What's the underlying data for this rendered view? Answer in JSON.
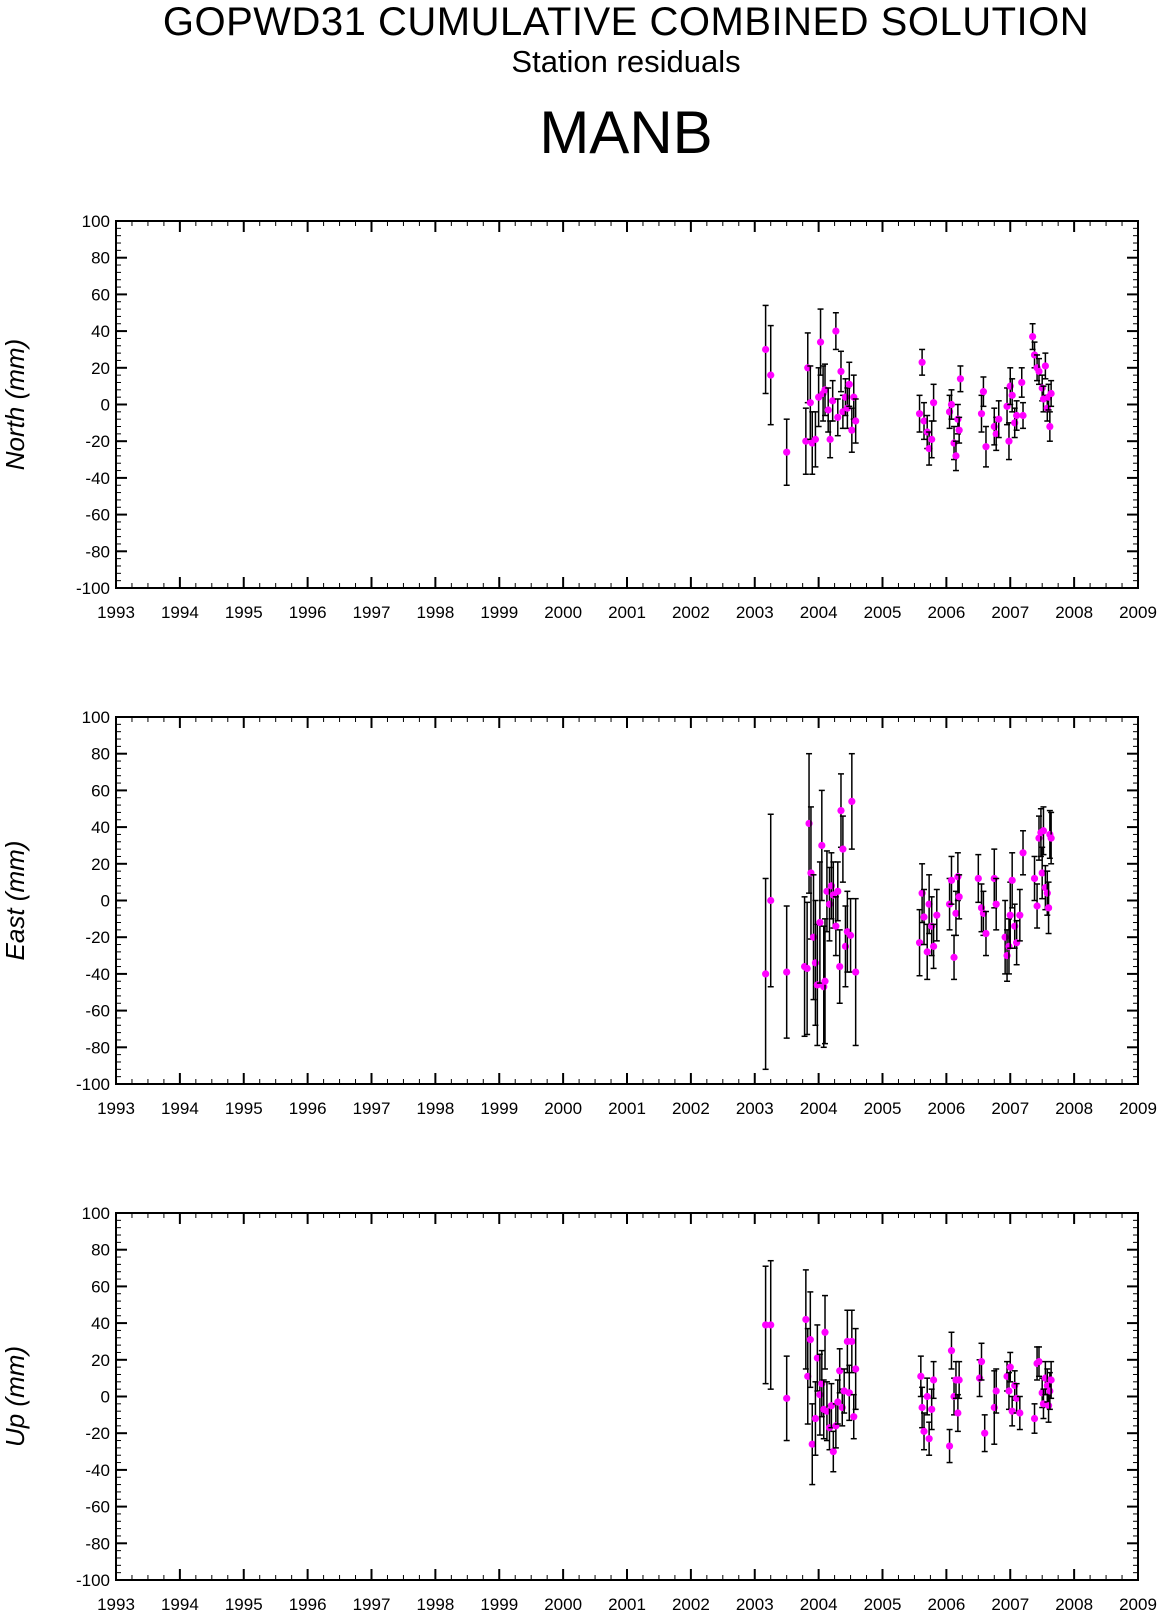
{
  "title": "GOPWD31 CUMULATIVE COMBINED SOLUTION",
  "subtitle": "Station residuals",
  "station": "MANB",
  "colors": {
    "point": "#ff00ff",
    "errorbar": "#000000",
    "axis": "#000000"
  },
  "chart_data": [
    {
      "type": "scatter",
      "ylabel": "North (mm)",
      "xlim": [
        1993,
        2009
      ],
      "ylim": [
        -100,
        100
      ],
      "xticks": [
        "1993",
        "1994",
        "1995",
        "1996",
        "1997",
        "1998",
        "1999",
        "2000",
        "2001",
        "2002",
        "2003",
        "2004",
        "2005",
        "2006",
        "2007",
        "2008",
        "2009"
      ],
      "yticks": [
        "100",
        "80",
        "60",
        "40",
        "20",
        "0",
        "-20",
        "-40",
        "-60",
        "-80",
        "-100"
      ],
      "points": [
        {
          "x": 2003.17,
          "y": 30,
          "err": 24
        },
        {
          "x": 2003.25,
          "y": 16,
          "err": 27
        },
        {
          "x": 2003.5,
          "y": -26,
          "err": 18
        },
        {
          "x": 2003.8,
          "y": -20,
          "err": 18
        },
        {
          "x": 2003.83,
          "y": 20,
          "err": 19
        },
        {
          "x": 2003.87,
          "y": 1,
          "err": 20
        },
        {
          "x": 2003.9,
          "y": -21,
          "err": 17
        },
        {
          "x": 2003.95,
          "y": -19,
          "err": 15
        },
        {
          "x": 2004.0,
          "y": 4,
          "err": 16
        },
        {
          "x": 2004.03,
          "y": 34,
          "err": 18
        },
        {
          "x": 2004.07,
          "y": 6,
          "err": 15
        },
        {
          "x": 2004.1,
          "y": 8,
          "err": 14
        },
        {
          "x": 2004.15,
          "y": -3,
          "err": 12
        },
        {
          "x": 2004.18,
          "y": -19,
          "err": 10
        },
        {
          "x": 2004.22,
          "y": 2,
          "err": 11
        },
        {
          "x": 2004.27,
          "y": 40,
          "err": 10
        },
        {
          "x": 2004.3,
          "y": -7,
          "err": 10
        },
        {
          "x": 2004.35,
          "y": 18,
          "err": 11
        },
        {
          "x": 2004.38,
          "y": -4,
          "err": 9
        },
        {
          "x": 2004.42,
          "y": 4,
          "err": 10
        },
        {
          "x": 2004.45,
          "y": -2,
          "err": 11
        },
        {
          "x": 2004.48,
          "y": 11,
          "err": 12
        },
        {
          "x": 2004.52,
          "y": -14,
          "err": 12
        },
        {
          "x": 2004.55,
          "y": 4,
          "err": 12
        },
        {
          "x": 2004.58,
          "y": -9,
          "err": 12
        },
        {
          "x": 2005.58,
          "y": -5,
          "err": 10
        },
        {
          "x": 2005.62,
          "y": 23,
          "err": 7
        },
        {
          "x": 2005.65,
          "y": -9,
          "err": 10
        },
        {
          "x": 2005.7,
          "y": -15,
          "err": 9
        },
        {
          "x": 2005.73,
          "y": -24,
          "err": 9
        },
        {
          "x": 2005.77,
          "y": -19,
          "err": 10
        },
        {
          "x": 2005.8,
          "y": 1,
          "err": 10
        },
        {
          "x": 2006.05,
          "y": -4,
          "err": 9
        },
        {
          "x": 2006.08,
          "y": 0,
          "err": 8
        },
        {
          "x": 2006.12,
          "y": -21,
          "err": 9
        },
        {
          "x": 2006.15,
          "y": -28,
          "err": 8
        },
        {
          "x": 2006.18,
          "y": -8,
          "err": 8
        },
        {
          "x": 2006.2,
          "y": -14,
          "err": 7
        },
        {
          "x": 2006.22,
          "y": 14,
          "err": 7
        },
        {
          "x": 2006.55,
          "y": -5,
          "err": 10
        },
        {
          "x": 2006.58,
          "y": 7,
          "err": 8
        },
        {
          "x": 2006.62,
          "y": -23,
          "err": 11
        },
        {
          "x": 2006.75,
          "y": -12,
          "err": 10
        },
        {
          "x": 2006.78,
          "y": -16,
          "err": 9
        },
        {
          "x": 2006.82,
          "y": -8,
          "err": 10
        },
        {
          "x": 2006.95,
          "y": -1,
          "err": 10
        },
        {
          "x": 2006.98,
          "y": -20,
          "err": 10
        },
        {
          "x": 2007.0,
          "y": 10,
          "err": 10
        },
        {
          "x": 2007.03,
          "y": 5,
          "err": 9
        },
        {
          "x": 2007.07,
          "y": -10,
          "err": 8
        },
        {
          "x": 2007.1,
          "y": -6,
          "err": 8
        },
        {
          "x": 2007.18,
          "y": 12,
          "err": 8
        },
        {
          "x": 2007.2,
          "y": -6,
          "err": 7
        },
        {
          "x": 2007.35,
          "y": 37,
          "err": 7
        },
        {
          "x": 2007.38,
          "y": 27,
          "err": 7
        },
        {
          "x": 2007.42,
          "y": 20,
          "err": 7
        },
        {
          "x": 2007.45,
          "y": 18,
          "err": 7
        },
        {
          "x": 2007.5,
          "y": 9,
          "err": 7
        },
        {
          "x": 2007.52,
          "y": 3,
          "err": 7
        },
        {
          "x": 2007.55,
          "y": 21,
          "err": 7
        },
        {
          "x": 2007.58,
          "y": -2,
          "err": 7
        },
        {
          "x": 2007.6,
          "y": 4,
          "err": 7
        },
        {
          "x": 2007.62,
          "y": -12,
          "err": 8
        },
        {
          "x": 2007.64,
          "y": 6,
          "err": 7
        }
      ]
    },
    {
      "type": "scatter",
      "ylabel": "East (mm)",
      "xlim": [
        1993,
        2009
      ],
      "ylim": [
        -100,
        100
      ],
      "xticks": [
        "1993",
        "1994",
        "1995",
        "1996",
        "1997",
        "1998",
        "1999",
        "2000",
        "2001",
        "2002",
        "2003",
        "2004",
        "2005",
        "2006",
        "2007",
        "2008",
        "2009"
      ],
      "yticks": [
        "100",
        "80",
        "60",
        "40",
        "20",
        "0",
        "-20",
        "-40",
        "-60",
        "-80",
        "-100"
      ],
      "points": [
        {
          "x": 2003.17,
          "y": -40,
          "err": 52
        },
        {
          "x": 2003.25,
          "y": 0,
          "err": 47
        },
        {
          "x": 2003.5,
          "y": -39,
          "err": 36
        },
        {
          "x": 2003.78,
          "y": -36,
          "err": 38
        },
        {
          "x": 2003.82,
          "y": -37,
          "err": 36
        },
        {
          "x": 2003.85,
          "y": 42,
          "err": 38
        },
        {
          "x": 2003.88,
          "y": 15,
          "err": 36
        },
        {
          "x": 2003.92,
          "y": -20,
          "err": 34
        },
        {
          "x": 2003.95,
          "y": -34,
          "err": 34
        },
        {
          "x": 2003.98,
          "y": -46,
          "err": 33
        },
        {
          "x": 2004.02,
          "y": -12,
          "err": 33
        },
        {
          "x": 2004.05,
          "y": 30,
          "err": 30
        },
        {
          "x": 2004.08,
          "y": -47,
          "err": 33
        },
        {
          "x": 2004.1,
          "y": -44,
          "err": 34
        },
        {
          "x": 2004.13,
          "y": 5,
          "err": 22
        },
        {
          "x": 2004.17,
          "y": -2,
          "err": 20
        },
        {
          "x": 2004.2,
          "y": 8,
          "err": 18
        },
        {
          "x": 2004.23,
          "y": 3,
          "err": 18
        },
        {
          "x": 2004.27,
          "y": -14,
          "err": 16
        },
        {
          "x": 2004.3,
          "y": 5,
          "err": 16
        },
        {
          "x": 2004.33,
          "y": -36,
          "err": 20
        },
        {
          "x": 2004.35,
          "y": 49,
          "err": 20
        },
        {
          "x": 2004.38,
          "y": 28,
          "err": 18
        },
        {
          "x": 2004.42,
          "y": -25,
          "err": 22
        },
        {
          "x": 2004.45,
          "y": -17,
          "err": 22
        },
        {
          "x": 2004.5,
          "y": -19,
          "err": 20
        },
        {
          "x": 2004.52,
          "y": 54,
          "err": 26
        },
        {
          "x": 2004.58,
          "y": -39,
          "err": 40
        },
        {
          "x": 2005.58,
          "y": -23,
          "err": 18
        },
        {
          "x": 2005.62,
          "y": 4,
          "err": 16
        },
        {
          "x": 2005.65,
          "y": -9,
          "err": 15
        },
        {
          "x": 2005.7,
          "y": -28,
          "err": 15
        },
        {
          "x": 2005.73,
          "y": -2,
          "err": 16
        },
        {
          "x": 2005.77,
          "y": -14,
          "err": 16
        },
        {
          "x": 2005.8,
          "y": -25,
          "err": 12
        },
        {
          "x": 2005.85,
          "y": -8,
          "err": 14
        },
        {
          "x": 2006.05,
          "y": -2,
          "err": 14
        },
        {
          "x": 2006.08,
          "y": 11,
          "err": 13
        },
        {
          "x": 2006.12,
          "y": -31,
          "err": 12
        },
        {
          "x": 2006.15,
          "y": -7,
          "err": 12
        },
        {
          "x": 2006.18,
          "y": 13,
          "err": 13
        },
        {
          "x": 2006.2,
          "y": 2,
          "err": 12
        },
        {
          "x": 2006.5,
          "y": 12,
          "err": 13
        },
        {
          "x": 2006.55,
          "y": -4,
          "err": 13
        },
        {
          "x": 2006.58,
          "y": -7,
          "err": 12
        },
        {
          "x": 2006.62,
          "y": -18,
          "err": 12
        },
        {
          "x": 2006.75,
          "y": 12,
          "err": 16
        },
        {
          "x": 2006.78,
          "y": -2,
          "err": 14
        },
        {
          "x": 2006.92,
          "y": -20,
          "err": 20
        },
        {
          "x": 2006.95,
          "y": -30,
          "err": 14
        },
        {
          "x": 2006.98,
          "y": -25,
          "err": 15
        },
        {
          "x": 2007.0,
          "y": -8,
          "err": 18
        },
        {
          "x": 2007.03,
          "y": 11,
          "err": 15
        },
        {
          "x": 2007.07,
          "y": -14,
          "err": 12
        },
        {
          "x": 2007.1,
          "y": -23,
          "err": 12
        },
        {
          "x": 2007.15,
          "y": -8,
          "err": 14
        },
        {
          "x": 2007.2,
          "y": 26,
          "err": 12
        },
        {
          "x": 2007.38,
          "y": 12,
          "err": 12
        },
        {
          "x": 2007.42,
          "y": -3,
          "err": 12
        },
        {
          "x": 2007.45,
          "y": 34,
          "err": 12
        },
        {
          "x": 2007.48,
          "y": 37,
          "err": 13
        },
        {
          "x": 2007.5,
          "y": 15,
          "err": 14
        },
        {
          "x": 2007.52,
          "y": 38,
          "err": 13
        },
        {
          "x": 2007.55,
          "y": 7,
          "err": 12
        },
        {
          "x": 2007.58,
          "y": 4,
          "err": 12
        },
        {
          "x": 2007.6,
          "y": -4,
          "err": 14
        },
        {
          "x": 2007.62,
          "y": 36,
          "err": 13
        },
        {
          "x": 2007.64,
          "y": 34,
          "err": 14
        }
      ]
    },
    {
      "type": "scatter",
      "ylabel": "Up (mm)",
      "xlim": [
        1993,
        2009
      ],
      "ylim": [
        -100,
        100
      ],
      "xticks": [
        "1993",
        "1994",
        "1995",
        "1996",
        "1997",
        "1998",
        "1999",
        "2000",
        "2001",
        "2002",
        "2003",
        "2004",
        "2005",
        "2006",
        "2007",
        "2008",
        "2009"
      ],
      "yticks": [
        "100",
        "80",
        "60",
        "40",
        "20",
        "0",
        "-20",
        "-40",
        "-60",
        "-80",
        "-100"
      ],
      "points": [
        {
          "x": 2003.17,
          "y": 39,
          "err": 32
        },
        {
          "x": 2003.25,
          "y": 39,
          "err": 35
        },
        {
          "x": 2003.5,
          "y": -1,
          "err": 23
        },
        {
          "x": 2003.8,
          "y": 42,
          "err": 27
        },
        {
          "x": 2003.83,
          "y": 11,
          "err": 26
        },
        {
          "x": 2003.87,
          "y": 31,
          "err": 26
        },
        {
          "x": 2003.9,
          "y": -26,
          "err": 22
        },
        {
          "x": 2003.95,
          "y": -12,
          "err": 20
        },
        {
          "x": 2003.98,
          "y": 21,
          "err": 18
        },
        {
          "x": 2004.02,
          "y": 1,
          "err": 22
        },
        {
          "x": 2004.05,
          "y": 7,
          "err": 18
        },
        {
          "x": 2004.08,
          "y": -7,
          "err": 16
        },
        {
          "x": 2004.1,
          "y": 35,
          "err": 20
        },
        {
          "x": 2004.13,
          "y": -8,
          "err": 16
        },
        {
          "x": 2004.17,
          "y": -17,
          "err": 12
        },
        {
          "x": 2004.2,
          "y": -5,
          "err": 12
        },
        {
          "x": 2004.23,
          "y": -30,
          "err": 11
        },
        {
          "x": 2004.27,
          "y": -16,
          "err": 12
        },
        {
          "x": 2004.3,
          "y": -3,
          "err": 12
        },
        {
          "x": 2004.33,
          "y": 14,
          "err": 12
        },
        {
          "x": 2004.37,
          "y": -6,
          "err": 10
        },
        {
          "x": 2004.4,
          "y": 3,
          "err": 12
        },
        {
          "x": 2004.45,
          "y": 30,
          "err": 17
        },
        {
          "x": 2004.48,
          "y": 2,
          "err": 15
        },
        {
          "x": 2004.52,
          "y": 30,
          "err": 17
        },
        {
          "x": 2004.55,
          "y": -11,
          "err": 12
        },
        {
          "x": 2004.58,
          "y": 15,
          "err": 22
        },
        {
          "x": 2005.6,
          "y": 11,
          "err": 11
        },
        {
          "x": 2005.62,
          "y": -6,
          "err": 11
        },
        {
          "x": 2005.65,
          "y": -19,
          "err": 10
        },
        {
          "x": 2005.7,
          "y": 0,
          "err": 10
        },
        {
          "x": 2005.73,
          "y": -23,
          "err": 9
        },
        {
          "x": 2005.77,
          "y": -7,
          "err": 11
        },
        {
          "x": 2005.8,
          "y": 9,
          "err": 10
        },
        {
          "x": 2006.05,
          "y": -27,
          "err": 9
        },
        {
          "x": 2006.08,
          "y": 25,
          "err": 10
        },
        {
          "x": 2006.12,
          "y": 0,
          "err": 10
        },
        {
          "x": 2006.15,
          "y": 9,
          "err": 10
        },
        {
          "x": 2006.18,
          "y": -9,
          "err": 10
        },
        {
          "x": 2006.2,
          "y": 9,
          "err": 10
        },
        {
          "x": 2006.52,
          "y": 10,
          "err": 10
        },
        {
          "x": 2006.55,
          "y": 19,
          "err": 10
        },
        {
          "x": 2006.6,
          "y": -20,
          "err": 10
        },
        {
          "x": 2006.75,
          "y": -6,
          "err": 20
        },
        {
          "x": 2006.78,
          "y": 3,
          "err": 12
        },
        {
          "x": 2006.95,
          "y": 11,
          "err": 8
        },
        {
          "x": 2006.98,
          "y": 3,
          "err": 10
        },
        {
          "x": 2007.0,
          "y": 16,
          "err": 8
        },
        {
          "x": 2007.03,
          "y": -8,
          "err": 8
        },
        {
          "x": 2007.07,
          "y": 6,
          "err": 8
        },
        {
          "x": 2007.1,
          "y": -1,
          "err": 8
        },
        {
          "x": 2007.15,
          "y": -9,
          "err": 9
        },
        {
          "x": 2007.38,
          "y": -12,
          "err": 8
        },
        {
          "x": 2007.42,
          "y": 18,
          "err": 9
        },
        {
          "x": 2007.45,
          "y": 19,
          "err": 8
        },
        {
          "x": 2007.5,
          "y": 2,
          "err": 8
        },
        {
          "x": 2007.52,
          "y": -4,
          "err": 8
        },
        {
          "x": 2007.55,
          "y": 10,
          "err": 9
        },
        {
          "x": 2007.58,
          "y": 6,
          "err": 9
        },
        {
          "x": 2007.6,
          "y": -5,
          "err": 9
        },
        {
          "x": 2007.62,
          "y": 3,
          "err": 10
        },
        {
          "x": 2007.64,
          "y": 9,
          "err": 10
        }
      ]
    }
  ]
}
